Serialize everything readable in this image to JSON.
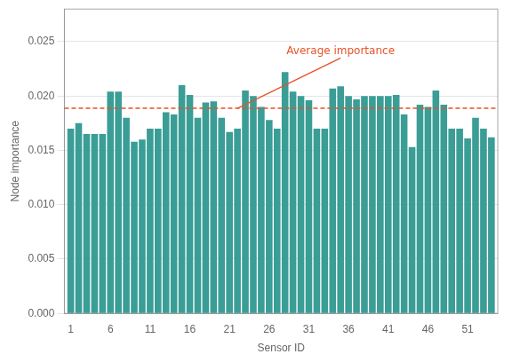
{
  "chart_data": {
    "type": "bar",
    "x": [
      1,
      2,
      3,
      4,
      5,
      6,
      7,
      8,
      9,
      10,
      11,
      12,
      13,
      14,
      15,
      16,
      17,
      18,
      19,
      20,
      21,
      22,
      23,
      24,
      25,
      26,
      27,
      28,
      29,
      30,
      31,
      32,
      33,
      34,
      35,
      36,
      37,
      38,
      39,
      40,
      41,
      42,
      43,
      44,
      45,
      46,
      47,
      48,
      49,
      50,
      51,
      52,
      53,
      54
    ],
    "values": [
      0.017,
      0.0175,
      0.0165,
      0.0165,
      0.0165,
      0.0204,
      0.0204,
      0.018,
      0.0158,
      0.016,
      0.017,
      0.017,
      0.0185,
      0.0183,
      0.021,
      0.0201,
      0.018,
      0.0194,
      0.0195,
      0.018,
      0.0167,
      0.017,
      0.0205,
      0.02,
      0.019,
      0.0178,
      0.017,
      0.0222,
      0.0204,
      0.02,
      0.0196,
      0.017,
      0.017,
      0.0207,
      0.0209,
      0.02,
      0.0197,
      0.02,
      0.02,
      0.02,
      0.02,
      0.0201,
      0.0183,
      0.0153,
      0.0192,
      0.019,
      0.0205,
      0.0192,
      0.017,
      0.017,
      0.0161,
      0.018,
      0.017,
      0.0162
    ],
    "color": "#3a9e96",
    "xlabel": "Sensor ID",
    "ylabel": "Node importance",
    "xlim": [
      0.2,
      54.8
    ],
    "xticks": [
      1,
      6,
      11,
      16,
      21,
      26,
      31,
      36,
      41,
      46,
      51
    ],
    "ylim": [
      0.0,
      0.028
    ],
    "yticks": [
      {
        "value": 0.0,
        "label": "0.000"
      },
      0.005,
      {
        "value": 0.01,
        "label": "0.010"
      },
      0.015,
      {
        "value": 0.02,
        "label": "0.020"
      },
      0.025
    ],
    "grid": "y",
    "hlines": [
      {
        "value": 0.01887,
        "color": "#e8522a",
        "line_style": "dashed"
      }
    ],
    "annotations": [
      {
        "text": "Average importance",
        "x": 35,
        "y": 0.0235,
        "arrow_x": 22,
        "arrow_y": 0.01887,
        "color": "#e8522a"
      }
    ]
  }
}
